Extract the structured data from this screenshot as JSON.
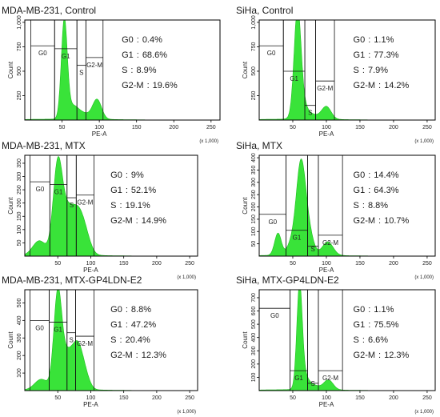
{
  "colors": {
    "histogram_fill": "#39e339",
    "histogram_edge": "#1fbf1f",
    "axis": "#000000",
    "text": "#222222"
  },
  "chart_data": [
    {
      "type": "area",
      "title": "MDA-MB-231, Control",
      "xlabel": "PE-A",
      "ylabel": "Count",
      "x_unit": "(x 1,000)",
      "xlim": [
        0,
        262
      ],
      "ylim": [
        0,
        1024
      ],
      "x_ticks": [
        "50",
        "100",
        "150",
        "200",
        "250"
      ],
      "y_ticks": [
        "250",
        "500",
        "750",
        "1,000"
      ],
      "gates": [
        {
          "name": "G0",
          "x_range": [
            8,
            40
          ],
          "level": 760
        },
        {
          "name": "G1",
          "x_range": [
            40,
            70
          ],
          "level": 730
        },
        {
          "name": "S",
          "x_range": [
            70,
            82
          ],
          "level": 560
        },
        {
          "name": "G2-M",
          "x_range": [
            82,
            105
          ],
          "level": 640
        }
      ],
      "stats": [
        {
          "label": "G0",
          "sep": ":",
          "value": "0.4%"
        },
        {
          "label": "G1",
          "sep": ":",
          "value": "68.6%"
        },
        {
          "label": "S",
          "sep": ":",
          "value": "8.9%"
        },
        {
          "label": "G2-M",
          "sep": ":",
          "value": "19.6%"
        }
      ],
      "peaks": [
        {
          "center": 53,
          "height": 1000,
          "width": 4
        },
        {
          "center": 64,
          "height": 120,
          "width": 7
        },
        {
          "center": 97,
          "height": 200,
          "width": 6
        },
        {
          "center": 78,
          "height": 60,
          "width": 9
        }
      ]
    },
    {
      "type": "area",
      "title": "SiHa, Control",
      "xlabel": "PE-A",
      "ylabel": "Count",
      "x_unit": "(x 1,000)",
      "xlim": [
        0,
        262
      ],
      "ylim": [
        0,
        1024
      ],
      "x_ticks": [
        "50",
        "100",
        "150",
        "200",
        "250"
      ],
      "y_ticks": [
        "250",
        "500",
        "750",
        "1,000"
      ],
      "gates": [
        {
          "name": "G0",
          "x_range": [
            0,
            36
          ],
          "level": 760
        },
        {
          "name": "G1",
          "x_range": [
            36,
            68
          ],
          "level": 500
        },
        {
          "name": "S",
          "x_range": [
            68,
            84
          ],
          "level": 150
        },
        {
          "name": "G2-M",
          "x_range": [
            84,
            112
          ],
          "level": 400
        }
      ],
      "stats": [
        {
          "label": "G0",
          "sep": ":",
          "value": "1.1%"
        },
        {
          "label": "G1",
          "sep": ":",
          "value": "77.3%"
        },
        {
          "label": "S",
          "sep": ":",
          "value": "7.9%"
        },
        {
          "label": "G2-M",
          "sep": ":",
          "value": "14.2%"
        }
      ],
      "peaks": [
        {
          "center": 57,
          "height": 1000,
          "width": 5
        },
        {
          "center": 62,
          "height": 180,
          "width": 8
        },
        {
          "center": 100,
          "height": 130,
          "width": 7
        },
        {
          "center": 80,
          "height": 40,
          "width": 9
        }
      ]
    },
    {
      "type": "area",
      "title": "MDA-MB-231, MTX",
      "xlabel": "PE-A",
      "ylabel": "Count",
      "x_unit": "(x 1,000)",
      "xlim": [
        0,
        262
      ],
      "ylim": [
        0,
        380
      ],
      "x_ticks": [
        "50",
        "100",
        "150",
        "200",
        "250"
      ],
      "y_ticks": [
        "50",
        "100",
        "150",
        "200",
        "250",
        "300",
        "350"
      ],
      "gates": [
        {
          "name": "G0",
          "x_range": [
            8,
            38
          ],
          "level": 280
        },
        {
          "name": "G1",
          "x_range": [
            38,
            64
          ],
          "level": 270
        },
        {
          "name": "S",
          "x_range": [
            64,
            78
          ],
          "level": 220
        },
        {
          "name": "G2-M",
          "x_range": [
            78,
            105
          ],
          "level": 230
        }
      ],
      "stats": [
        {
          "label": "G0",
          "sep": ":",
          "value": "9%"
        },
        {
          "label": "G1",
          "sep": ":",
          "value": "52.1%"
        },
        {
          "label": "S",
          "sep": ":",
          "value": "19.1%"
        },
        {
          "label": "G2-M",
          "sep": ":",
          "value": "14.9%"
        }
      ],
      "peaks": [
        {
          "center": 50,
          "height": 340,
          "width": 7
        },
        {
          "center": 80,
          "height": 160,
          "width": 10
        },
        {
          "center": 64,
          "height": 120,
          "width": 8
        },
        {
          "center": 22,
          "height": 55,
          "width": 10
        },
        {
          "center": 93,
          "height": 40,
          "width": 8
        }
      ]
    },
    {
      "type": "area",
      "title": "SiHa, MTX",
      "xlabel": "PE-A",
      "ylabel": "Count",
      "x_unit": "(x 1,000)",
      "xlim": [
        0,
        262
      ],
      "ylim": [
        0,
        410
      ],
      "x_ticks": [
        "50",
        "100",
        "150",
        "200",
        "250"
      ],
      "y_ticks": [
        "50",
        "100",
        "150",
        "200",
        "250",
        "300",
        "350",
        "400"
      ],
      "gates": [
        {
          "name": "G0",
          "x_range": [
            0,
            40
          ],
          "level": 170
        },
        {
          "name": "G1",
          "x_range": [
            40,
            72
          ],
          "level": 105
        },
        {
          "name": "S",
          "x_range": [
            72,
            88
          ],
          "level": 40
        },
        {
          "name": "G2-M",
          "x_range": [
            88,
            124
          ],
          "level": 85
        }
      ],
      "stats": [
        {
          "label": "G0",
          "sep": ":",
          "value": "14.4%"
        },
        {
          "label": "G1",
          "sep": ":",
          "value": "64.3%"
        },
        {
          "label": "S",
          "sep": ":",
          "value": "8.8%"
        },
        {
          "label": "G2-M",
          "sep": ":",
          "value": "10.7%"
        }
      ],
      "peaks": [
        {
          "center": 62,
          "height": 370,
          "width": 7
        },
        {
          "center": 28,
          "height": 90,
          "width": 5
        },
        {
          "center": 74,
          "height": 80,
          "width": 7
        },
        {
          "center": 102,
          "height": 55,
          "width": 8
        },
        {
          "center": 47,
          "height": 40,
          "width": 6
        }
      ]
    },
    {
      "type": "area",
      "title": "MDA-MB-231, MTX-GP4LDN-E2",
      "xlabel": "PE-A",
      "ylabel": "Count",
      "x_unit": "(x 1,000)",
      "xlim": [
        0,
        262
      ],
      "ylim": [
        0,
        575
      ],
      "x_ticks": [
        "50",
        "100",
        "150",
        "200",
        "250"
      ],
      "y_ticks": [
        "100",
        "200",
        "300",
        "400",
        "500"
      ],
      "gates": [
        {
          "name": "G0",
          "x_range": [
            8,
            37
          ],
          "level": 400
        },
        {
          "name": "G1",
          "x_range": [
            37,
            64
          ],
          "level": 390
        },
        {
          "name": "S",
          "x_range": [
            64,
            77
          ],
          "level": 330
        },
        {
          "name": "G2-M",
          "x_range": [
            77,
            105
          ],
          "level": 310
        }
      ],
      "stats": [
        {
          "label": "G0",
          "sep": ":",
          "value": "8.8%"
        },
        {
          "label": "G1",
          "sep": ":",
          "value": "47.2%"
        },
        {
          "label": "S",
          "sep": ":",
          "value": "20.4%"
        },
        {
          "label": "G2-M",
          "sep": ":",
          "value": "12.3%"
        }
      ],
      "peaks": [
        {
          "center": 50,
          "height": 540,
          "width": 6
        },
        {
          "center": 80,
          "height": 240,
          "width": 8
        },
        {
          "center": 64,
          "height": 180,
          "width": 8
        },
        {
          "center": 25,
          "height": 60,
          "width": 10
        },
        {
          "center": 92,
          "height": 60,
          "width": 7
        }
      ]
    },
    {
      "type": "area",
      "title": "SiHa, MTX-GP4LDN-E2",
      "xlabel": "PE-A",
      "ylabel": "Count",
      "x_unit": "(x 1,000)",
      "xlim": [
        0,
        262
      ],
      "ylim": [
        0,
        760
      ],
      "x_ticks": [
        "50",
        "100",
        "150",
        "200",
        "250"
      ],
      "y_ticks": [
        "100",
        "200",
        "300",
        "400",
        "500",
        "600",
        "700"
      ],
      "gates": [
        {
          "name": "G0",
          "x_range": [
            0,
            46
          ],
          "level": 620
        },
        {
          "name": "G1",
          "x_range": [
            46,
            72
          ],
          "level": 150
        },
        {
          "name": "S",
          "x_range": [
            72,
            88
          ],
          "level": 55
        },
        {
          "name": "G2-M",
          "x_range": [
            88,
            124
          ],
          "level": 150
        }
      ],
      "stats": [
        {
          "label": "G0",
          "sep": ":",
          "value": "1.1%"
        },
        {
          "label": "G1",
          "sep": ":",
          "value": "75.5%"
        },
        {
          "label": "S",
          "sep": ":",
          "value": "6.6%"
        },
        {
          "label": "G2-M",
          "sep": ":",
          "value": "12.3%"
        }
      ],
      "peaks": [
        {
          "center": 60,
          "height": 730,
          "width": 4
        },
        {
          "center": 66,
          "height": 110,
          "width": 7
        },
        {
          "center": 103,
          "height": 75,
          "width": 7
        },
        {
          "center": 82,
          "height": 30,
          "width": 8
        }
      ]
    }
  ]
}
